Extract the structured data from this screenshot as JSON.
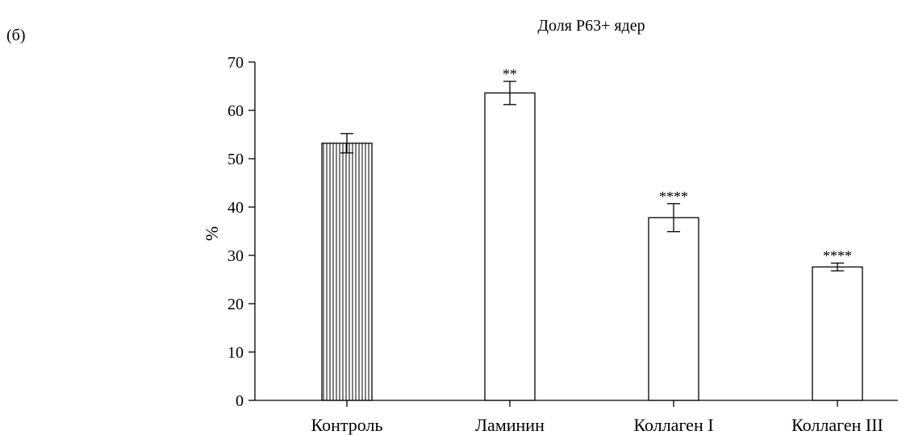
{
  "panel_label": "(б)",
  "chart_data": {
    "type": "bar",
    "title": "Доля P63+ ядер",
    "xlabel": "",
    "ylabel": "%",
    "ylim": [
      0,
      70
    ],
    "yticks": [
      0,
      10,
      20,
      30,
      40,
      50,
      60,
      70
    ],
    "grid": false,
    "categories": [
      "Контроль",
      "Ламинин",
      "Коллаген I",
      "Коллаген III"
    ],
    "values": [
      53.2,
      63.6,
      37.8,
      27.6
    ],
    "errors": [
      2.0,
      2.4,
      2.9,
      0.8
    ],
    "significance": [
      "",
      "**",
      "****",
      "****"
    ],
    "bar_fills": [
      "vertical-hatch",
      "white",
      "white",
      "white"
    ]
  }
}
